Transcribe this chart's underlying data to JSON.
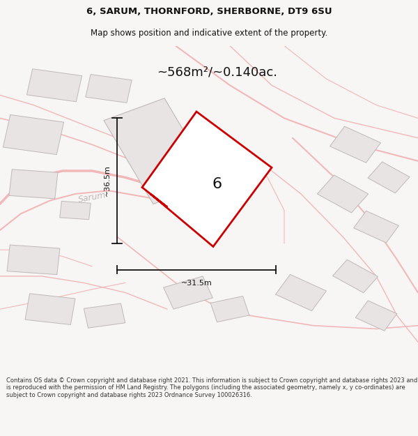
{
  "title_line1": "6, SARUM, THORNFORD, SHERBORNE, DT9 6SU",
  "title_line2": "Map shows position and indicative extent of the property.",
  "area_text": "~568m²/~0.140ac.",
  "label_number": "6",
  "dim_height": "~36.5m",
  "dim_width": "~31.5m",
  "watermark": "Sarum",
  "footer_text": "Contains OS data © Crown copyright and database right 2021. This information is subject to Crown copyright and database rights 2023 and is reproduced with the permission of HM Land Registry. The polygons (including the associated geometry, namely x, y co-ordinates) are subject to Crown copyright and database rights 2023 Ordnance Survey 100026316.",
  "bg_color": "#f8f5f5",
  "map_bg": "#ffffff",
  "building_fill": "#e8e4e4",
  "building_stroke": "#c0b8b8",
  "road_color": "#f0b8b8",
  "property_stroke": "#cc0000",
  "property_fill": "#ffffff",
  "dim_color": "#111111",
  "text_color": "#111111",
  "footer_color": "#333333",
  "title_color": "#111111",
  "watermark_color": "#c0b8b8"
}
